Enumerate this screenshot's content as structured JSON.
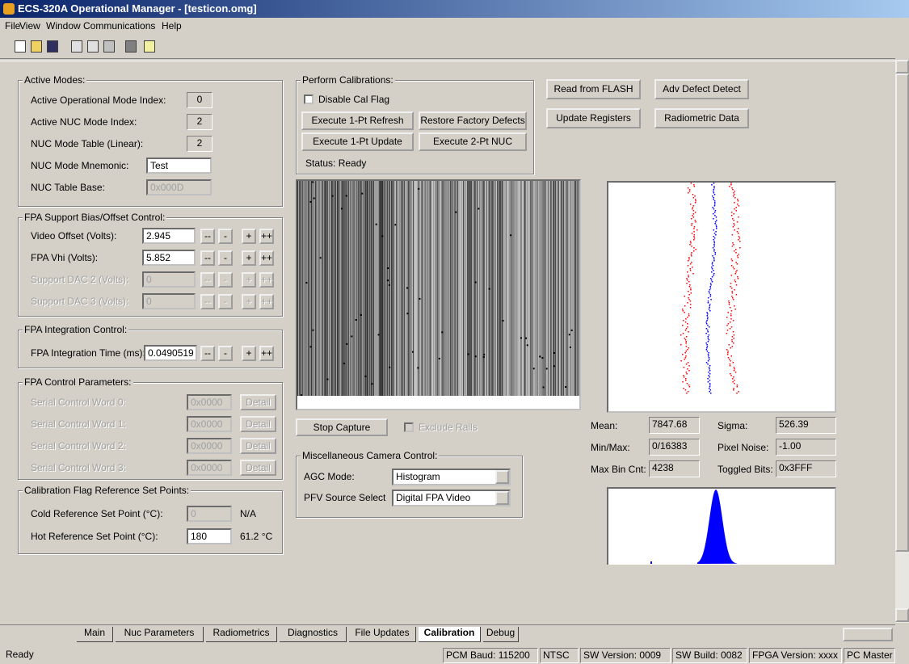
{
  "window": {
    "title": "ECS-320A Operational Manager - [testicon.omg]"
  },
  "menu": [
    "File",
    "View",
    "Window",
    "Communications",
    "Help"
  ],
  "active_modes": {
    "title": "Active Modes:",
    "rows": [
      {
        "label": "Active Operational Mode Index:",
        "value": "0"
      },
      {
        "label": "Active NUC Mode Index:",
        "value": "2"
      },
      {
        "label": "NUC Mode Table (Linear):",
        "value": "2"
      },
      {
        "label": "NUC Mode Mnemonic:",
        "value": "Test"
      },
      {
        "label": "NUC Table Base:",
        "value": "0x000D"
      }
    ]
  },
  "bias_offset": {
    "title": "FPA Support Bias/Offset Control:",
    "buttons": [
      "--",
      "-",
      "+",
      "++"
    ],
    "rows": [
      {
        "label": "Video Offset (Volts):",
        "value": "2.945",
        "enabled": true
      },
      {
        "label": "FPA Vhi (Volts):",
        "value": "5.852",
        "enabled": true
      },
      {
        "label": "Support DAC 2 (Volts):",
        "value": "0",
        "enabled": false
      },
      {
        "label": "Support DAC 3 (Volts):",
        "value": "0",
        "enabled": false
      }
    ]
  },
  "integration": {
    "title": "FPA Integration Control:",
    "label": "FPA Integration Time (ms):",
    "value": "0.0490519"
  },
  "control_params": {
    "title": "FPA Control Parameters:",
    "rows": [
      {
        "label": "Serial Control Word 0:",
        "value": "0x0000",
        "button": "Detail"
      },
      {
        "label": "Serial Control Word 1:",
        "value": "0x0000",
        "button": "Detail"
      },
      {
        "label": "Serial Control Word 2:",
        "value": "0x0000",
        "button": "Detail"
      },
      {
        "label": "Serial Control Word 3:",
        "value": "0x0000",
        "button": "Detail"
      }
    ]
  },
  "cal_flag": {
    "title": "Calibration Flag Reference Set Points:",
    "rows": [
      {
        "label": "Cold Reference Set Point (°C):",
        "value": "0",
        "reading": "N/A",
        "enabled": false
      },
      {
        "label": "Hot Reference Set Point (°C):",
        "value": "180",
        "reading": "61.2 °C",
        "enabled": true
      }
    ]
  },
  "perform_cal": {
    "title": "Perform Calibrations:",
    "checkbox": "Disable Cal Flag",
    "buttons": [
      "Execute 1-Pt Refresh",
      "Restore Factory Defects",
      "Execute 1-Pt Update",
      "Execute 2-Pt NUC"
    ],
    "status": "Status: Ready"
  },
  "actions": [
    "Read from FLASH",
    "Adv Defect Detect",
    "Update Registers",
    "Radiometric Data"
  ],
  "capture": {
    "button": "Stop Capture",
    "checkbox": "Exclude Rails"
  },
  "misc": {
    "title": "Miscellaneous Camera Control:",
    "rows": [
      {
        "label": "AGC Mode:",
        "value": "Histogram"
      },
      {
        "label": "PFV Source Select",
        "value": "Digital FPA Video"
      }
    ]
  },
  "stats": [
    {
      "label": "Mean:",
      "value": "7847.68"
    },
    {
      "label": "Sigma:",
      "value": "526.39"
    },
    {
      "label": "Min/Max:",
      "value": "0/16383"
    },
    {
      "label": "Pixel Noise:",
      "value": "-1.00"
    },
    {
      "label": "Max Bin Cnt:",
      "value": "4238"
    },
    {
      "label": "Toggled Bits:",
      "value": "0x3FFF"
    }
  ],
  "tabs": [
    "Main",
    "Nuc Parameters",
    "Radiometrics",
    "Diagnostics",
    "File Updates",
    "Calibration",
    "Debug"
  ],
  "active_tab": 5,
  "status_bar": [
    "Ready",
    "PCM Baud: 115200",
    "NTSC",
    "SW Version: 0009",
    "SW Build: 0082",
    "FPGA Version: xxxx",
    "PC Master"
  ]
}
